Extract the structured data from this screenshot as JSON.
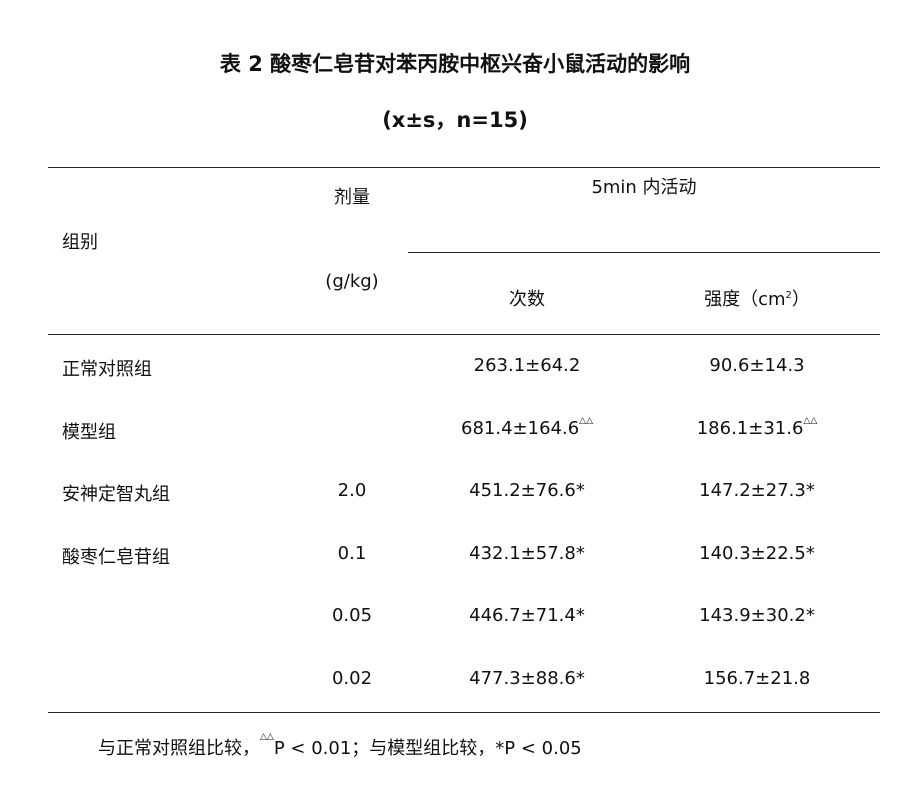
{
  "title": "表 2  酸枣仁皂苷对苯丙胺中枢兴奋小鼠活动的影响",
  "subtitle": "(x±s，n=15)",
  "headers": {
    "group": "组别",
    "dose": "剂量",
    "dose_unit": "(g/kg)",
    "activity": "5min 内活动",
    "count": "次数",
    "intensity": "强度（cm",
    "intensity_sup": "2",
    "intensity_end": "）"
  },
  "rows": [
    {
      "group": "正常对照组",
      "dose": "",
      "count": "263.1±64.2",
      "count_mark": "",
      "intensity": "90.6±14.3",
      "intensity_mark": ""
    },
    {
      "group": "模型组",
      "dose": "",
      "count": "681.4±164.6",
      "count_mark": "△△",
      "intensity": "186.1±31.6",
      "intensity_mark": "△△"
    },
    {
      "group": "安神定智丸组",
      "dose": "2.0",
      "count": "451.2±76.6*",
      "count_mark": "",
      "intensity": "147.2±27.3*",
      "intensity_mark": ""
    },
    {
      "group": "酸枣仁皂苷组",
      "dose": "0.1",
      "count": "432.1±57.8*",
      "count_mark": "",
      "intensity": "140.3±22.5*",
      "intensity_mark": ""
    },
    {
      "group": "",
      "dose": "0.05",
      "count": "446.7±71.4*",
      "count_mark": "",
      "intensity": "143.9±30.2*",
      "intensity_mark": ""
    },
    {
      "group": "",
      "dose": "0.02",
      "count": "477.3±88.6*",
      "count_mark": "",
      "intensity": "156.7±21.8",
      "intensity_mark": ""
    }
  ],
  "footnote": {
    "part1": "与正常对照组比较，",
    "mark": "△△",
    "part2": "P < 0.01；与模型组比较，*P < 0.05"
  }
}
